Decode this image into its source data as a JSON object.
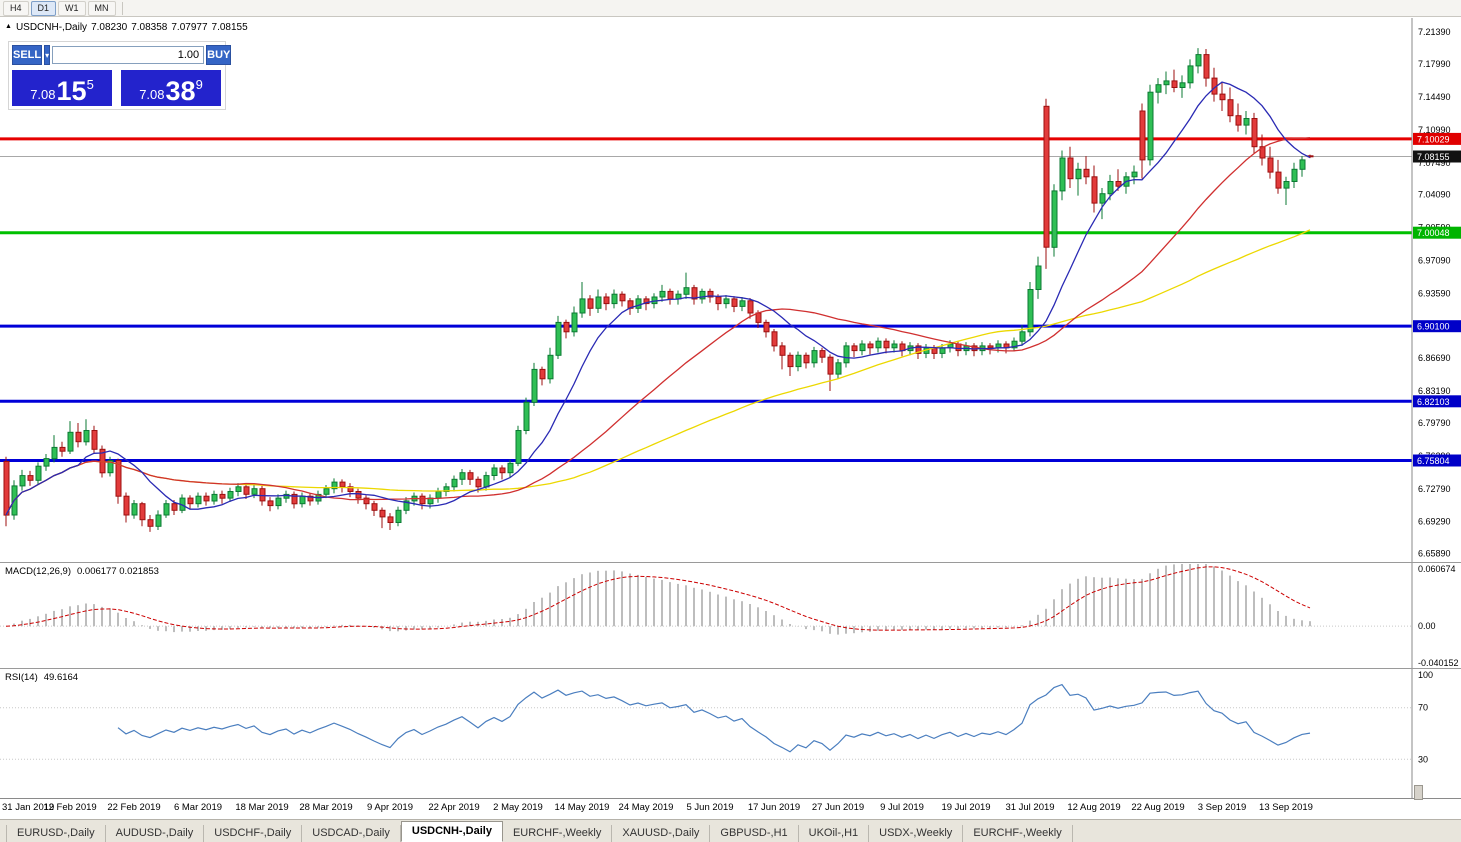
{
  "toolbar": {
    "timeframes": [
      "H4",
      "D1",
      "W1",
      "MN"
    ],
    "active": "D1"
  },
  "info_line": {
    "collapse_icon": "▲",
    "symbol": "USDCNH-,Daily",
    "open": "7.08230",
    "high": "7.08358",
    "low": "7.07977",
    "close": "7.08155"
  },
  "trade_panel": {
    "sell_label": "SELL",
    "buy_label": "BUY",
    "volume": "1.00",
    "dropdown_icon": "▾",
    "sell_price": {
      "prefix": "7.08",
      "main": "15",
      "sup": "5"
    },
    "buy_price": {
      "prefix": "7.08",
      "main": "38",
      "sup": "9"
    },
    "colors": {
      "button": "#3565c5",
      "price_box": "#2323cc"
    }
  },
  "price_axis": {
    "labels": [
      "7.21390",
      "7.17990",
      "7.14490",
      "7.10990",
      "7.07490",
      "7.04090",
      "7.00590",
      "6.97090",
      "6.93590",
      "6.90090",
      "6.86690",
      "6.83190",
      "6.79790",
      "6.76290",
      "6.72790",
      "6.69290",
      "6.65890"
    ],
    "tags": [
      {
        "value": "7.10029",
        "color": "#e00000"
      },
      {
        "value": "7.08155",
        "color": "#111111"
      },
      {
        "value": "7.00048",
        "color": "#00b400"
      },
      {
        "value": "6.90100",
        "color": "#0000c8"
      },
      {
        "value": "6.82103",
        "color": "#0000c8"
      },
      {
        "value": "6.75804",
        "color": "#0000c8"
      }
    ]
  },
  "hlines": [
    {
      "price": 7.10029,
      "color": "#e60000",
      "width": 3
    },
    {
      "price": 7.00048,
      "color": "#00c000",
      "width": 3
    },
    {
      "price": 6.901,
      "color": "#0000d8",
      "width": 3
    },
    {
      "price": 6.82103,
      "color": "#0000d8",
      "width": 3
    },
    {
      "price": 6.75804,
      "color": "#0000d8",
      "width": 3
    }
  ],
  "current_price": 7.08155,
  "macd": {
    "label": "MACD(12,26,9)",
    "values": "0.006177 0.021853",
    "axis": [
      "0.060674",
      "0.00",
      "-0.040152"
    ],
    "scale": {
      "max": 0.060674,
      "min": -0.040152
    },
    "histogram_color": "#bdbdbd",
    "signal_color": "#cc0000"
  },
  "rsi": {
    "label": "RSI(14)",
    "value": "49.6164",
    "axis": [
      "100",
      "70",
      "30"
    ],
    "levels": [
      70,
      30
    ],
    "line_color": "#4a7ebf"
  },
  "dates": [
    "31 Jan 2019",
    "12 Feb 2019",
    "22 Feb 2019",
    "6 Mar 2019",
    "18 Mar 2019",
    "28 Mar 2019",
    "9 Apr 2019",
    "22 Apr 2019",
    "2 May 2019",
    "14 May 2019",
    "24 May 2019",
    "5 Jun 2019",
    "17 Jun 2019",
    "27 Jun 2019",
    "9 Jul 2019",
    "19 Jul 2019",
    "31 Jul 2019",
    "12 Aug 2019",
    "22 Aug 2019",
    "3 Sep 2019",
    "13 Sep 2019"
  ],
  "tabs": {
    "active_index": 4,
    "items": [
      "EURUSD-,Daily",
      "AUDUSD-,Daily",
      "USDCHF-,Daily",
      "USDCAD-,Daily",
      "USDCNH-,Daily",
      "EURCHF-,Weekly",
      "XAUUSD-,Daily",
      "GBPUSD-,H1",
      "UKOil-,H1",
      "USDX-,Weekly",
      "EURCHF-,Weekly"
    ]
  },
  "chart_data": {
    "type": "candlestick",
    "symbol": "USDCNH",
    "timeframe": "Daily",
    "ylim": [
      6.65,
      7.229
    ],
    "colors": {
      "up_fill": "#2fbf55",
      "up_stroke": "#0b7a33",
      "down_fill": "#e23b3b",
      "down_stroke": "#9c0f0f",
      "ma_fast": "#2a2ab4",
      "ma_mid": "#d03030",
      "ma_slow": "#ecd800"
    },
    "ma_periods": {
      "fast": 10,
      "mid": 30,
      "slow": 60
    },
    "candles": [
      [
        6.757,
        6.762,
        6.688,
        6.7
      ],
      [
        6.7,
        6.737,
        6.695,
        6.731
      ],
      [
        6.731,
        6.748,
        6.726,
        6.742
      ],
      [
        6.742,
        6.747,
        6.731,
        6.737
      ],
      [
        6.737,
        6.756,
        6.733,
        6.752
      ],
      [
        6.752,
        6.765,
        6.747,
        6.76
      ],
      [
        6.76,
        6.785,
        6.756,
        6.772
      ],
      [
        6.772,
        6.778,
        6.762,
        6.768
      ],
      [
        6.768,
        6.8,
        6.765,
        6.788
      ],
      [
        6.788,
        6.798,
        6.772,
        6.778
      ],
      [
        6.778,
        6.802,
        6.774,
        6.79
      ],
      [
        6.79,
        6.795,
        6.765,
        6.77
      ],
      [
        6.77,
        6.774,
        6.74,
        6.745
      ],
      [
        6.745,
        6.762,
        6.741,
        6.758
      ],
      [
        6.758,
        6.76,
        6.712,
        6.72
      ],
      [
        6.72,
        6.724,
        6.692,
        6.7
      ],
      [
        6.7,
        6.716,
        6.696,
        6.712
      ],
      [
        6.712,
        6.714,
        6.688,
        6.695
      ],
      [
        6.695,
        6.7,
        6.682,
        6.688
      ],
      [
        6.688,
        6.705,
        6.684,
        6.7
      ],
      [
        6.7,
        6.716,
        6.697,
        6.712
      ],
      [
        6.712,
        6.716,
        6.7,
        6.705
      ],
      [
        6.705,
        6.722,
        6.702,
        6.718
      ],
      [
        6.718,
        6.721,
        6.706,
        6.712
      ],
      [
        6.712,
        6.724,
        6.708,
        6.72
      ],
      [
        6.72,
        6.724,
        6.71,
        6.715
      ],
      [
        6.715,
        6.726,
        6.711,
        6.722
      ],
      [
        6.722,
        6.726,
        6.712,
        6.718
      ],
      [
        6.718,
        6.729,
        6.714,
        6.725
      ],
      [
        6.725,
        6.734,
        6.72,
        6.73
      ],
      [
        6.73,
        6.733,
        6.717,
        6.722
      ],
      [
        6.722,
        6.732,
        6.718,
        6.728
      ],
      [
        6.728,
        6.731,
        6.71,
        6.715
      ],
      [
        6.715,
        6.719,
        6.704,
        6.71
      ],
      [
        6.71,
        6.722,
        6.706,
        6.718
      ],
      [
        6.718,
        6.726,
        6.713,
        6.722
      ],
      [
        6.722,
        6.725,
        6.707,
        6.712
      ],
      [
        6.712,
        6.724,
        6.708,
        6.72
      ],
      [
        6.72,
        6.723,
        6.71,
        6.715
      ],
      [
        6.715,
        6.726,
        6.711,
        6.722
      ],
      [
        6.722,
        6.732,
        6.718,
        6.728
      ],
      [
        6.728,
        6.739,
        6.723,
        6.735
      ],
      [
        6.735,
        6.738,
        6.724,
        6.73
      ],
      [
        6.73,
        6.734,
        6.719,
        6.725
      ],
      [
        6.725,
        6.728,
        6.712,
        6.718
      ],
      [
        6.718,
        6.721,
        6.706,
        6.712
      ],
      [
        6.712,
        6.715,
        6.699,
        6.705
      ],
      [
        6.705,
        6.708,
        6.686,
        6.698
      ],
      [
        6.698,
        6.702,
        6.684,
        6.692
      ],
      [
        6.692,
        6.709,
        6.688,
        6.705
      ],
      [
        6.705,
        6.719,
        6.701,
        6.715
      ],
      [
        6.715,
        6.724,
        6.71,
        6.72
      ],
      [
        6.72,
        6.723,
        6.706,
        6.712
      ],
      [
        6.712,
        6.722,
        6.707,
        6.718
      ],
      [
        6.718,
        6.729,
        6.713,
        6.725
      ],
      [
        6.725,
        6.734,
        6.72,
        6.73
      ],
      [
        6.73,
        6.742,
        6.725,
        6.738
      ],
      [
        6.738,
        6.749,
        6.732,
        6.745
      ],
      [
        6.745,
        6.748,
        6.732,
        6.738
      ],
      [
        6.738,
        6.741,
        6.724,
        6.73
      ],
      [
        6.73,
        6.746,
        6.726,
        6.742
      ],
      [
        6.742,
        6.754,
        6.737,
        6.75
      ],
      [
        6.75,
        6.753,
        6.738,
        6.745
      ],
      [
        6.745,
        6.759,
        6.74,
        6.755
      ],
      [
        6.755,
        6.795,
        6.752,
        6.79
      ],
      [
        6.79,
        6.825,
        6.786,
        6.82
      ],
      [
        6.82,
        6.862,
        6.816,
        6.855
      ],
      [
        6.855,
        6.858,
        6.838,
        6.845
      ],
      [
        6.845,
        6.878,
        6.84,
        6.87
      ],
      [
        6.87,
        6.912,
        6.866,
        6.905
      ],
      [
        6.905,
        6.908,
        6.888,
        6.895
      ],
      [
        6.895,
        6.922,
        6.89,
        6.915
      ],
      [
        6.915,
        6.948,
        6.91,
        6.93
      ],
      [
        6.93,
        6.934,
        6.912,
        6.92
      ],
      [
        6.92,
        6.94,
        6.915,
        6.932
      ],
      [
        6.932,
        6.936,
        6.918,
        6.925
      ],
      [
        6.925,
        6.94,
        6.92,
        6.935
      ],
      [
        6.935,
        6.938,
        6.922,
        6.928
      ],
      [
        6.928,
        6.931,
        6.913,
        6.92
      ],
      [
        6.92,
        6.934,
        6.915,
        6.93
      ],
      [
        6.93,
        6.933,
        6.918,
        6.925
      ],
      [
        6.925,
        6.936,
        6.92,
        6.932
      ],
      [
        6.932,
        6.945,
        6.927,
        6.938
      ],
      [
        6.938,
        6.941,
        6.924,
        6.93
      ],
      [
        6.93,
        6.939,
        6.924,
        6.935
      ],
      [
        6.935,
        6.958,
        6.93,
        6.942
      ],
      [
        6.942,
        6.945,
        6.924,
        6.93
      ],
      [
        6.93,
        6.941,
        6.925,
        6.938
      ],
      [
        6.938,
        6.941,
        6.926,
        6.932
      ],
      [
        6.932,
        6.935,
        6.918,
        6.925
      ],
      [
        6.925,
        6.934,
        6.92,
        6.93
      ],
      [
        6.93,
        6.933,
        6.916,
        6.922
      ],
      [
        6.922,
        6.932,
        6.917,
        6.928
      ],
      [
        6.928,
        6.931,
        6.909,
        6.915
      ],
      [
        6.915,
        6.918,
        6.899,
        6.905
      ],
      [
        6.905,
        6.908,
        6.889,
        6.895
      ],
      [
        6.895,
        6.898,
        6.874,
        6.88
      ],
      [
        6.88,
        6.884,
        6.855,
        6.87
      ],
      [
        6.87,
        6.873,
        6.848,
        6.858
      ],
      [
        6.858,
        6.874,
        6.853,
        6.87
      ],
      [
        6.87,
        6.873,
        6.856,
        6.862
      ],
      [
        6.862,
        6.879,
        6.857,
        6.875
      ],
      [
        6.875,
        6.878,
        6.862,
        6.868
      ],
      [
        6.868,
        6.871,
        6.832,
        6.85
      ],
      [
        6.85,
        6.866,
        6.845,
        6.862
      ],
      [
        6.862,
        6.884,
        6.857,
        6.88
      ],
      [
        6.88,
        6.883,
        6.868,
        6.875
      ],
      [
        6.875,
        6.886,
        6.87,
        6.882
      ],
      [
        6.882,
        6.885,
        6.871,
        6.878
      ],
      [
        6.878,
        6.889,
        6.873,
        6.885
      ],
      [
        6.885,
        6.888,
        6.872,
        6.878
      ],
      [
        6.878,
        6.886,
        6.873,
        6.882
      ],
      [
        6.882,
        6.885,
        6.869,
        6.875
      ],
      [
        6.875,
        6.884,
        6.87,
        6.88
      ],
      [
        6.88,
        6.883,
        6.866,
        6.872
      ],
      [
        6.872,
        6.882,
        6.867,
        6.878
      ],
      [
        6.878,
        6.881,
        6.866,
        6.872
      ],
      [
        6.872,
        6.882,
        6.867,
        6.878
      ],
      [
        6.878,
        6.886,
        6.873,
        6.882
      ],
      [
        6.882,
        6.885,
        6.869,
        6.875
      ],
      [
        6.875,
        6.884,
        6.87,
        6.88
      ],
      [
        6.88,
        6.883,
        6.869,
        6.875
      ],
      [
        6.875,
        6.884,
        6.87,
        6.88
      ],
      [
        6.88,
        6.883,
        6.871,
        6.878
      ],
      [
        6.878,
        6.886,
        6.873,
        6.882
      ],
      [
        6.882,
        6.885,
        6.872,
        6.878
      ],
      [
        6.878,
        6.889,
        6.874,
        6.885
      ],
      [
        6.885,
        6.902,
        6.88,
        6.895
      ],
      [
        6.895,
        6.948,
        6.89,
        6.94
      ],
      [
        6.94,
        6.975,
        6.93,
        6.965
      ],
      [
        7.135,
        7.143,
        6.962,
        6.985
      ],
      [
        6.985,
        7.052,
        6.975,
        7.045
      ],
      [
        7.045,
        7.088,
        7.035,
        7.08
      ],
      [
        7.08,
        7.092,
        7.048,
        7.058
      ],
      [
        7.058,
        7.075,
        7.04,
        7.068
      ],
      [
        7.068,
        7.082,
        7.052,
        7.06
      ],
      [
        7.06,
        7.072,
        7.022,
        7.032
      ],
      [
        7.032,
        7.048,
        7.015,
        7.042
      ],
      [
        7.042,
        7.062,
        7.035,
        7.055
      ],
      [
        7.055,
        7.068,
        7.045,
        7.05
      ],
      [
        7.05,
        7.065,
        7.042,
        7.06
      ],
      [
        7.06,
        7.072,
        7.052,
        7.065
      ],
      [
        7.13,
        7.138,
        7.058,
        7.078
      ],
      [
        7.078,
        7.158,
        7.072,
        7.15
      ],
      [
        7.15,
        7.165,
        7.138,
        7.158
      ],
      [
        7.158,
        7.172,
        7.148,
        7.162
      ],
      [
        7.162,
        7.174,
        7.15,
        7.155
      ],
      [
        7.155,
        7.168,
        7.144,
        7.16
      ],
      [
        7.16,
        7.185,
        7.154,
        7.178
      ],
      [
        7.178,
        7.197,
        7.17,
        7.19
      ],
      [
        7.19,
        7.196,
        7.156,
        7.165
      ],
      [
        7.165,
        7.176,
        7.14,
        7.148
      ],
      [
        7.148,
        7.16,
        7.13,
        7.142
      ],
      [
        7.142,
        7.155,
        7.118,
        7.125
      ],
      [
        7.125,
        7.138,
        7.108,
        7.115
      ],
      [
        7.115,
        7.13,
        7.105,
        7.122
      ],
      [
        7.122,
        7.128,
        7.085,
        7.092
      ],
      [
        7.092,
        7.105,
        7.072,
        7.08
      ],
      [
        7.08,
        7.092,
        7.058,
        7.065
      ],
      [
        7.065,
        7.078,
        7.042,
        7.048
      ],
      [
        7.048,
        7.06,
        7.03,
        7.055
      ],
      [
        7.055,
        7.075,
        7.048,
        7.068
      ],
      [
        7.068,
        7.082,
        7.06,
        7.078
      ],
      [
        7.0823,
        7.0836,
        7.0798,
        7.0816
      ]
    ]
  }
}
